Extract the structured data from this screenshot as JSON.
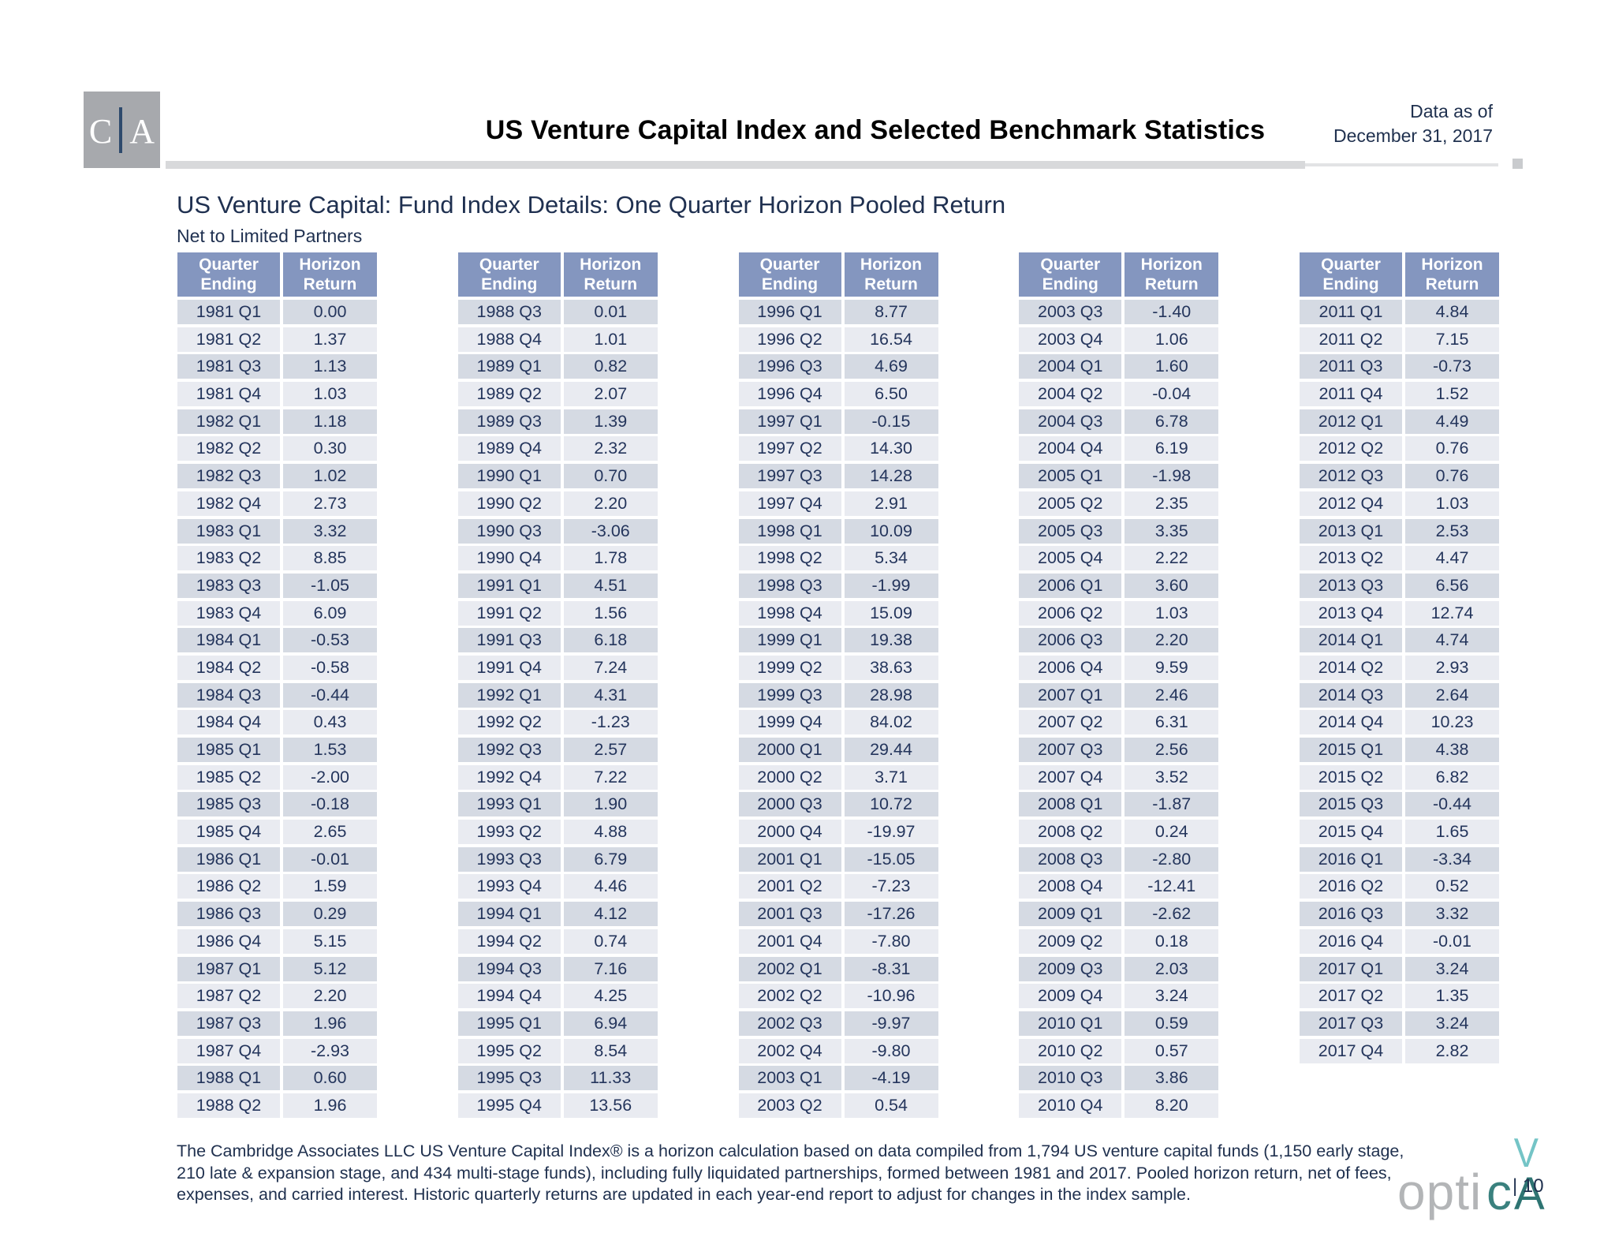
{
  "header": {
    "logo_left": "C",
    "logo_right": "A",
    "title": "US Venture Capital Index and Selected Benchmark Statistics",
    "data_as_of_line1": "Data as of",
    "data_as_of_line2": "December 31, 2017"
  },
  "section": {
    "title": "US Venture Capital: Fund Index Details: One Quarter Horizon Pooled Return",
    "subtitle": "Net to Limited Partners"
  },
  "table": {
    "headers": [
      "Quarter\nEnding",
      "Horizon\nReturn"
    ],
    "groups": [
      {
        "rows": [
          [
            "1981 Q1",
            "0.00"
          ],
          [
            "1981 Q2",
            "1.37"
          ],
          [
            "1981 Q3",
            "1.13"
          ],
          [
            "1981 Q4",
            "1.03"
          ],
          [
            "1982 Q1",
            "1.18"
          ],
          [
            "1982 Q2",
            "0.30"
          ],
          [
            "1982 Q3",
            "1.02"
          ],
          [
            "1982 Q4",
            "2.73"
          ],
          [
            "1983 Q1",
            "3.32"
          ],
          [
            "1983 Q2",
            "8.85"
          ],
          [
            "1983 Q3",
            "-1.05"
          ],
          [
            "1983 Q4",
            "6.09"
          ],
          [
            "1984 Q1",
            "-0.53"
          ],
          [
            "1984 Q2",
            "-0.58"
          ],
          [
            "1984 Q3",
            "-0.44"
          ],
          [
            "1984 Q4",
            "0.43"
          ],
          [
            "1985 Q1",
            "1.53"
          ],
          [
            "1985 Q2",
            "-2.00"
          ],
          [
            "1985 Q3",
            "-0.18"
          ],
          [
            "1985 Q4",
            "2.65"
          ],
          [
            "1986 Q1",
            "-0.01"
          ],
          [
            "1986 Q2",
            "1.59"
          ],
          [
            "1986 Q3",
            "0.29"
          ],
          [
            "1986 Q4",
            "5.15"
          ],
          [
            "1987 Q1",
            "5.12"
          ],
          [
            "1987 Q2",
            "2.20"
          ],
          [
            "1987 Q3",
            "1.96"
          ],
          [
            "1987 Q4",
            "-2.93"
          ],
          [
            "1988 Q1",
            "0.60"
          ],
          [
            "1988 Q2",
            "1.96"
          ]
        ]
      },
      {
        "rows": [
          [
            "1988 Q3",
            "0.01"
          ],
          [
            "1988 Q4",
            "1.01"
          ],
          [
            "1989 Q1",
            "0.82"
          ],
          [
            "1989 Q2",
            "2.07"
          ],
          [
            "1989 Q3",
            "1.39"
          ],
          [
            "1989 Q4",
            "2.32"
          ],
          [
            "1990 Q1",
            "0.70"
          ],
          [
            "1990 Q2",
            "2.20"
          ],
          [
            "1990 Q3",
            "-3.06"
          ],
          [
            "1990 Q4",
            "1.78"
          ],
          [
            "1991 Q1",
            "4.51"
          ],
          [
            "1991 Q2",
            "1.56"
          ],
          [
            "1991 Q3",
            "6.18"
          ],
          [
            "1991 Q4",
            "7.24"
          ],
          [
            "1992 Q1",
            "4.31"
          ],
          [
            "1992 Q2",
            "-1.23"
          ],
          [
            "1992 Q3",
            "2.57"
          ],
          [
            "1992 Q4",
            "7.22"
          ],
          [
            "1993 Q1",
            "1.90"
          ],
          [
            "1993 Q2",
            "4.88"
          ],
          [
            "1993 Q3",
            "6.79"
          ],
          [
            "1993 Q4",
            "4.46"
          ],
          [
            "1994 Q1",
            "4.12"
          ],
          [
            "1994 Q2",
            "0.74"
          ],
          [
            "1994 Q3",
            "7.16"
          ],
          [
            "1994 Q4",
            "4.25"
          ],
          [
            "1995 Q1",
            "6.94"
          ],
          [
            "1995 Q2",
            "8.54"
          ],
          [
            "1995 Q3",
            "11.33"
          ],
          [
            "1995 Q4",
            "13.56"
          ]
        ]
      },
      {
        "rows": [
          [
            "1996 Q1",
            "8.77"
          ],
          [
            "1996 Q2",
            "16.54"
          ],
          [
            "1996 Q3",
            "4.69"
          ],
          [
            "1996 Q4",
            "6.50"
          ],
          [
            "1997 Q1",
            "-0.15"
          ],
          [
            "1997 Q2",
            "14.30"
          ],
          [
            "1997 Q3",
            "14.28"
          ],
          [
            "1997 Q4",
            "2.91"
          ],
          [
            "1998 Q1",
            "10.09"
          ],
          [
            "1998 Q2",
            "5.34"
          ],
          [
            "1998 Q3",
            "-1.99"
          ],
          [
            "1998 Q4",
            "15.09"
          ],
          [
            "1999 Q1",
            "19.38"
          ],
          [
            "1999 Q2",
            "38.63"
          ],
          [
            "1999 Q3",
            "28.98"
          ],
          [
            "1999 Q4",
            "84.02"
          ],
          [
            "2000 Q1",
            "29.44"
          ],
          [
            "2000 Q2",
            "3.71"
          ],
          [
            "2000 Q3",
            "10.72"
          ],
          [
            "2000 Q4",
            "-19.97"
          ],
          [
            "2001 Q1",
            "-15.05"
          ],
          [
            "2001 Q2",
            "-7.23"
          ],
          [
            "2001 Q3",
            "-17.26"
          ],
          [
            "2001 Q4",
            "-7.80"
          ],
          [
            "2002 Q1",
            "-8.31"
          ],
          [
            "2002 Q2",
            "-10.96"
          ],
          [
            "2002 Q3",
            "-9.97"
          ],
          [
            "2002 Q4",
            "-9.80"
          ],
          [
            "2003 Q1",
            "-4.19"
          ],
          [
            "2003 Q2",
            "0.54"
          ]
        ]
      },
      {
        "rows": [
          [
            "2003 Q3",
            "-1.40"
          ],
          [
            "2003 Q4",
            "1.06"
          ],
          [
            "2004 Q1",
            "1.60"
          ],
          [
            "2004 Q2",
            "-0.04"
          ],
          [
            "2004 Q3",
            "6.78"
          ],
          [
            "2004 Q4",
            "6.19"
          ],
          [
            "2005 Q1",
            "-1.98"
          ],
          [
            "2005 Q2",
            "2.35"
          ],
          [
            "2005 Q3",
            "3.35"
          ],
          [
            "2005 Q4",
            "2.22"
          ],
          [
            "2006 Q1",
            "3.60"
          ],
          [
            "2006 Q2",
            "1.03"
          ],
          [
            "2006 Q3",
            "2.20"
          ],
          [
            "2006 Q4",
            "9.59"
          ],
          [
            "2007 Q1",
            "2.46"
          ],
          [
            "2007 Q2",
            "6.31"
          ],
          [
            "2007 Q3",
            "2.56"
          ],
          [
            "2007 Q4",
            "3.52"
          ],
          [
            "2008 Q1",
            "-1.87"
          ],
          [
            "2008 Q2",
            "0.24"
          ],
          [
            "2008 Q3",
            "-2.80"
          ],
          [
            "2008 Q4",
            "-12.41"
          ],
          [
            "2009 Q1",
            "-2.62"
          ],
          [
            "2009 Q2",
            "0.18"
          ],
          [
            "2009 Q3",
            "2.03"
          ],
          [
            "2009 Q4",
            "3.24"
          ],
          [
            "2010 Q1",
            "0.59"
          ],
          [
            "2010 Q2",
            "0.57"
          ],
          [
            "2010 Q3",
            "3.86"
          ],
          [
            "2010 Q4",
            "8.20"
          ]
        ]
      },
      {
        "rows": [
          [
            "2011 Q1",
            "4.84"
          ],
          [
            "2011 Q2",
            "7.15"
          ],
          [
            "2011 Q3",
            "-0.73"
          ],
          [
            "2011 Q4",
            "1.52"
          ],
          [
            "2012 Q1",
            "4.49"
          ],
          [
            "2012 Q2",
            "0.76"
          ],
          [
            "2012 Q3",
            "0.76"
          ],
          [
            "2012 Q4",
            "1.03"
          ],
          [
            "2013 Q1",
            "2.53"
          ],
          [
            "2013 Q2",
            "4.47"
          ],
          [
            "2013 Q3",
            "6.56"
          ],
          [
            "2013 Q4",
            "12.74"
          ],
          [
            "2014 Q1",
            "4.74"
          ],
          [
            "2014 Q2",
            "2.93"
          ],
          [
            "2014 Q3",
            "2.64"
          ],
          [
            "2014 Q4",
            "10.23"
          ],
          [
            "2015 Q1",
            "4.38"
          ],
          [
            "2015 Q2",
            "6.82"
          ],
          [
            "2015 Q3",
            "-0.44"
          ],
          [
            "2015 Q4",
            "1.65"
          ],
          [
            "2016 Q1",
            "-3.34"
          ],
          [
            "2016 Q2",
            "0.52"
          ],
          [
            "2016 Q3",
            "3.32"
          ],
          [
            "2016 Q4",
            "-0.01"
          ],
          [
            "2017 Q1",
            "3.24"
          ],
          [
            "2017 Q2",
            "1.35"
          ],
          [
            "2017 Q3",
            "3.24"
          ],
          [
            "2017 Q4",
            "2.82"
          ]
        ]
      }
    ]
  },
  "footnote": {
    "lines": [
      "The Cambridge Associates LLC US Venture Capital Index® is a horizon calculation based on data compiled from 1,794 US venture capital funds (1,150 early stage,",
      "210 late & expansion stage, and 434 multi-stage funds), including fully liquidated partnerships, formed between 1981 and 2017. Pooled horizon return, net of fees,",
      "expenses, and carried interest. Historic quarterly returns are updated in each year-end report to adjust for changes in the index sample."
    ]
  },
  "footer": {
    "logo_opti": "opti",
    "logo_c": "c",
    "logo_a": "A",
    "logo_v": "V",
    "page_number": "| 10"
  },
  "colors": {
    "header_bg": "#8496bf",
    "row_dark": "#d5dae3",
    "row_light": "#e9ebf1",
    "text_navy": "#20314f",
    "logo_gray": "#a7a9ad",
    "optica_teal": "#2e7472",
    "optica_light_teal": "#74c4c6"
  }
}
